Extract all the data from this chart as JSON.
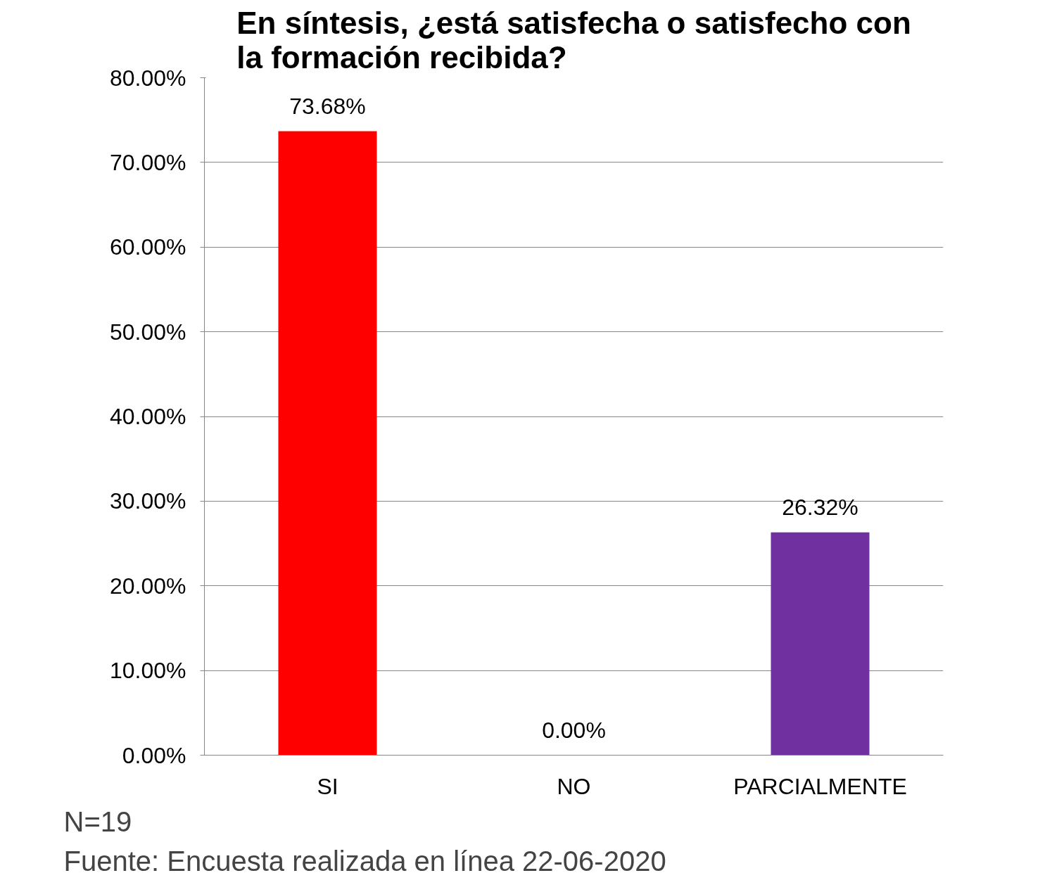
{
  "chart_data": {
    "type": "bar",
    "title": "En síntesis, ¿está satisfecha o satisfecho con la formación recibida?",
    "categories": [
      "SI",
      "NO",
      "PARCIALMENTE"
    ],
    "values": [
      73.68,
      0,
      26.32
    ],
    "colors": [
      "#ff0000",
      "#4f81bd",
      "#7030a0"
    ],
    "value_labels": [
      "73.68%",
      "0.00%",
      "26.32%"
    ],
    "ylim": [
      0,
      80
    ],
    "yticks": [
      {
        "value": 0,
        "label": "0.00%"
      },
      {
        "value": 10,
        "label": "10.00%"
      },
      {
        "value": 20,
        "label": "20.00%"
      },
      {
        "value": 30,
        "label": "30.00%"
      },
      {
        "value": 40,
        "label": "40.00%"
      },
      {
        "value": 50,
        "label": "50.00%"
      },
      {
        "value": 60,
        "label": "60.00%"
      },
      {
        "value": 70,
        "label": "70.00%"
      },
      {
        "value": 80,
        "label": "80.00%"
      }
    ],
    "grid": "y",
    "annotations": [
      "N=19",
      "Fuente: Encuesta realizada en línea 22-06-2020"
    ]
  }
}
